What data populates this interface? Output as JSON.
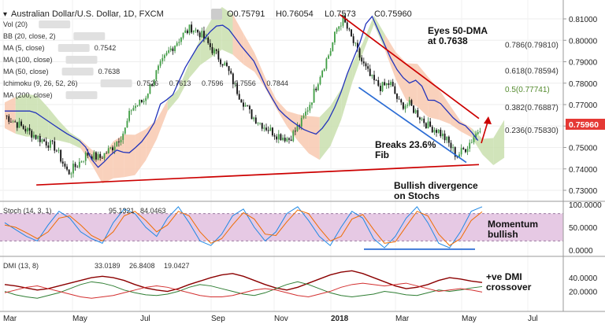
{
  "header": {
    "title": "Australian Dollar/U.S. Dollar, 1D, FXCM",
    "ohlc": {
      "o": "O0.75791",
      "h": "H0.76054",
      "l": "L0.7573",
      "c": "C0.75960"
    }
  },
  "indicators": [
    {
      "label": "Vol (20)",
      "values": []
    },
    {
      "label": "BB (20, close, 2)",
      "values": []
    },
    {
      "label": "MA (5, close)",
      "values": [
        {
          "text": "0.7542",
          "color": "#b71c1c"
        }
      ]
    },
    {
      "label": "MA (100, close)",
      "values": []
    },
    {
      "label": "MA (50, close)",
      "values": [
        {
          "text": "0.7638",
          "color": "#1a237e"
        }
      ]
    },
    {
      "label": "Ichimoku (9, 26, 52, 26)",
      "values": [
        {
          "text": "0.7526",
          "color": "#1565c0"
        },
        {
          "text": "0.7613",
          "color": "#b71c1c"
        },
        {
          "text": "0.7596",
          "color": "#2e7d32"
        },
        {
          "text": "0.7556",
          "color": "#2e7d32"
        },
        {
          "text": "0.7844",
          "color": "#b71c1c"
        }
      ]
    },
    {
      "label": "MA (200, close)",
      "values": []
    }
  ],
  "price_axis": [
    "0.81000",
    "0.80000",
    "0.79000",
    "0.78000",
    "0.77000",
    "0.76000",
    "0.75000",
    "0.74000",
    "0.73000"
  ],
  "current_price": "0.75960",
  "fib_levels": [
    {
      "text": "0.786(0.79810)",
      "value": 0.7981,
      "color": "#333333"
    },
    {
      "text": "0.618(0.78594)",
      "value": 0.78594,
      "color": "#333333"
    },
    {
      "text": "0.5(0.77741)",
      "value": 0.77741,
      "color": "#558b2f"
    },
    {
      "text": "0.382(0.76887)",
      "value": 0.76887,
      "color": "#333333"
    },
    {
      "text": "0.236(0.75830)",
      "value": 0.7583,
      "color": "#333333"
    }
  ],
  "annotations": {
    "eyes_line1": "Eyes 50-DMA",
    "eyes_line2": "at 0.7638",
    "breaks_line1": "Breaks 23.6%",
    "breaks_line2": "Fib",
    "divergence_line1": "Bullish divergence",
    "divergence_line2": "on Stochs",
    "momentum_line1": "Momentum",
    "momentum_line2": "bullish",
    "dmi_line1": "+ve DMI",
    "dmi_line2": "crossover"
  },
  "stoch": {
    "label": "Stoch (14, 3, 1)",
    "values": [
      {
        "text": "95.1321",
        "color": "#1e88e5"
      },
      {
        "text": "84.0463",
        "color": "#ef6c00"
      }
    ],
    "axis": [
      "100.0000",
      "50.0000",
      "0.0000"
    ]
  },
  "dmi": {
    "label": "DMI (13, 8)",
    "values": [
      {
        "text": "33.0189",
        "color": "#8b0000"
      },
      {
        "text": "26.8408",
        "color": "#2e7d32"
      },
      {
        "text": "19.0427",
        "color": "#d32f2f"
      }
    ],
    "axis": [
      "40.0000",
      "20.0000"
    ]
  },
  "x_axis": [
    "Mar",
    "May",
    "Jul",
    "Sep",
    "Nov",
    "2018",
    "Mar",
    "May",
    "Jul"
  ],
  "chart_data": [
    {
      "type": "candlestick",
      "title": "Australian Dollar/U.S. Dollar, 1D, FXCM",
      "ylim": [
        0.726,
        0.815
      ],
      "x": [
        "Mar",
        "May",
        "Jul",
        "Sep",
        "Nov",
        "2018",
        "Mar",
        "May",
        "Jul"
      ],
      "series": [
        {
          "values": [
            [
              0,
              0.765
            ],
            [
              0.25,
              0.76
            ],
            [
              0.5,
              0.755
            ],
            [
              0.8,
              0.75
            ],
            [
              1.0,
              0.738
            ],
            [
              1.15,
              0.742
            ],
            [
              1.3,
              0.747
            ],
            [
              1.5,
              0.745
            ],
            [
              1.7,
              0.75
            ],
            [
              1.9,
              0.758
            ],
            [
              2.0,
              0.768
            ],
            [
              2.2,
              0.772
            ],
            [
              2.4,
              0.785
            ],
            [
              2.6,
              0.795
            ],
            [
              2.8,
              0.802
            ],
            [
              2.95,
              0.806
            ],
            [
              3.1,
              0.803
            ],
            [
              3.3,
              0.795
            ],
            [
              3.5,
              0.788
            ],
            [
              3.7,
              0.775
            ],
            [
              3.9,
              0.765
            ],
            [
              4.1,
              0.76
            ],
            [
              4.3,
              0.756
            ],
            [
              4.5,
              0.754
            ],
            [
              4.7,
              0.762
            ],
            [
              4.85,
              0.772
            ],
            [
              5.0,
              0.785
            ],
            [
              5.15,
              0.795
            ],
            [
              5.25,
              0.805
            ],
            [
              5.35,
              0.81
            ],
            [
              5.5,
              0.8
            ],
            [
              5.65,
              0.79
            ],
            [
              5.8,
              0.782
            ],
            [
              5.95,
              0.778
            ],
            [
              6.1,
              0.78
            ],
            [
              6.25,
              0.77
            ],
            [
              6.4,
              0.77
            ],
            [
              6.55,
              0.765
            ],
            [
              6.7,
              0.76
            ],
            [
              6.85,
              0.758
            ],
            [
              7.0,
              0.753
            ],
            [
              7.15,
              0.746
            ],
            [
              7.3,
              0.75
            ],
            [
              7.45,
              0.756
            ],
            [
              7.52,
              0.7596
            ]
          ]
        }
      ],
      "trendlines": [
        {
          "name": "support",
          "from": [
            0.5,
            0.7325
          ],
          "to": [
            7.5,
            0.742
          ],
          "color": "#cc0000"
        },
        {
          "name": "resistance",
          "from": [
            5.3,
            0.812
          ],
          "to": [
            7.5,
            0.7635
          ],
          "color": "#cc0000"
        },
        {
          "name": "fib",
          "from": [
            5.6,
            0.778
          ],
          "to": [
            7.3,
            0.743
          ],
          "color": "#2b6cd4"
        }
      ]
    },
    {
      "type": "line",
      "title": "Stoch (14, 3, 1)",
      "ylim": [
        0,
        100
      ],
      "series": [
        {
          "values": [
            60,
            45,
            30,
            20,
            55,
            85,
            70,
            40,
            25,
            15,
            60,
            90,
            80,
            50,
            30,
            70,
            95,
            60,
            20,
            10,
            35,
            75,
            90,
            50,
            20,
            40,
            80,
            95,
            65,
            30,
            10,
            50,
            85,
            70,
            25,
            5,
            30,
            70,
            95,
            60,
            15,
            5,
            40,
            85,
            95
          ],
          "color": "#1e88e5"
        },
        {
          "values": [
            55,
            50,
            38,
            25,
            40,
            70,
            75,
            55,
            32,
            20,
            40,
            75,
            85,
            65,
            40,
            55,
            85,
            75,
            40,
            15,
            25,
            55,
            82,
            68,
            35,
            32,
            62,
            88,
            80,
            48,
            20,
            30,
            68,
            78,
            45,
            15,
            18,
            52,
            85,
            75,
            35,
            10,
            25,
            65,
            84
          ],
          "color": "#ef6c00"
        }
      ]
    },
    {
      "type": "line",
      "title": "DMI (13, 8)",
      "ylim": [
        0,
        55
      ],
      "series": [
        {
          "values": [
            30,
            28,
            25,
            22,
            24,
            28,
            32,
            36,
            40,
            42,
            40,
            36,
            30,
            25,
            22,
            20,
            24,
            30,
            35,
            40,
            44,
            46,
            42,
            36,
            30,
            25,
            22,
            26,
            32,
            38,
            44,
            48,
            50,
            46,
            40,
            34,
            28,
            24,
            26,
            30,
            36,
            40,
            38,
            35,
            33
          ],
          "color": "#8b0000"
        },
        {
          "values": [
            20,
            15,
            12,
            10,
            14,
            18,
            24,
            30,
            34,
            32,
            28,
            22,
            18,
            15,
            14,
            16,
            20,
            26,
            30,
            28,
            24,
            20,
            16,
            14,
            18,
            24,
            30,
            34,
            30,
            24,
            18,
            14,
            12,
            14,
            16,
            20,
            18,
            15,
            14,
            18,
            22,
            20,
            22,
            25,
            27
          ],
          "color": "#2e7d32"
        },
        {
          "values": [
            18,
            22,
            26,
            28,
            24,
            20,
            16,
            12,
            10,
            12,
            14,
            18,
            22,
            26,
            28,
            26,
            22,
            18,
            14,
            12,
            12,
            14,
            18,
            22,
            24,
            22,
            18,
            14,
            12,
            16,
            20,
            26,
            30,
            32,
            30,
            28,
            30,
            32,
            28,
            24,
            20,
            22,
            24,
            22,
            19
          ],
          "color": "#d32f2f"
        }
      ]
    }
  ]
}
